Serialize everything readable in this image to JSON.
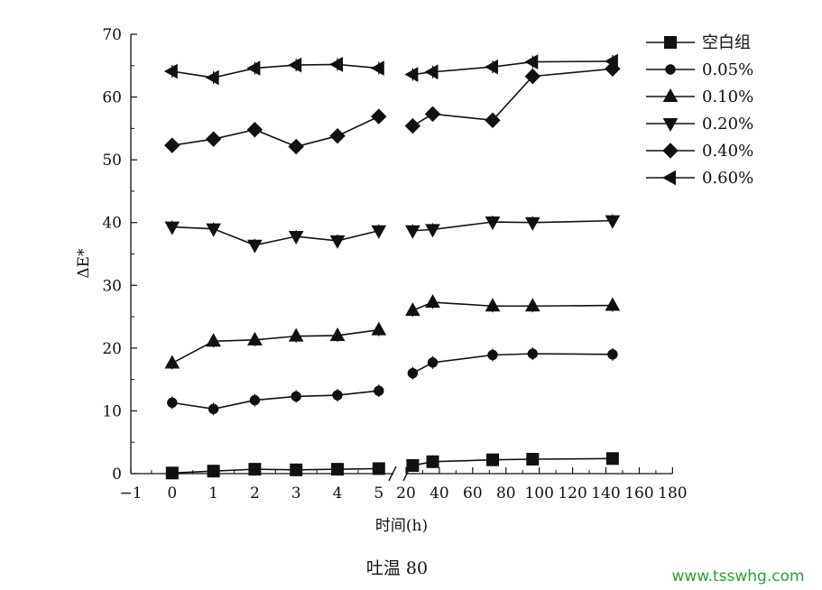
{
  "chart_data": {
    "type": "line",
    "caption": "吐温 80",
    "xlabel": "时间(h)",
    "ylabel": "ΔE*",
    "ylim": [
      0,
      70
    ],
    "y_ticks": [
      "0",
      "10",
      "20",
      "30",
      "40",
      "50",
      "60",
      "70"
    ],
    "x_tick_labels_left": [
      "−1",
      "0",
      "1",
      "2",
      "3",
      "4",
      "5"
    ],
    "x_tick_labels_right": [
      "20",
      "40",
      "60",
      "80",
      "100",
      "120",
      "140",
      "160",
      "180"
    ],
    "x_axis": "broken",
    "x_segment_left": [
      -1,
      5
    ],
    "x_segment_right": [
      20,
      180
    ],
    "legend_position": "top-right",
    "grid": false,
    "x": [
      0,
      1,
      2,
      3,
      4,
      5,
      24,
      36,
      72,
      96,
      144
    ],
    "series": [
      {
        "name": "空白组",
        "marker": "square",
        "values": [
          0.1,
          0.4,
          0.7,
          0.6,
          0.7,
          0.8,
          1.3,
          1.9,
          2.2,
          2.3,
          2.4
        ]
      },
      {
        "name": "0.05%",
        "marker": "circle",
        "values": [
          11.3,
          10.3,
          11.7,
          12.3,
          12.5,
          13.2,
          16.0,
          17.7,
          18.9,
          19.1,
          19.0
        ]
      },
      {
        "name": "0.10%",
        "marker": "triangle-up",
        "values": [
          17.6,
          21.1,
          21.3,
          21.9,
          22.0,
          22.9,
          26.0,
          27.3,
          26.7,
          26.7,
          26.8
        ]
      },
      {
        "name": "0.20%",
        "marker": "triangle-down",
        "values": [
          39.3,
          39.0,
          36.4,
          37.8,
          37.1,
          38.7,
          38.7,
          38.9,
          40.1,
          40.0,
          40.3
        ]
      },
      {
        "name": "0.40%",
        "marker": "diamond",
        "values": [
          52.3,
          53.3,
          54.8,
          52.1,
          53.8,
          56.9,
          55.4,
          57.3,
          56.3,
          63.3,
          64.5
        ]
      },
      {
        "name": "0.60%",
        "marker": "triangle-left",
        "values": [
          64.1,
          63.1,
          64.6,
          65.1,
          65.2,
          64.6,
          63.6,
          64.0,
          64.8,
          65.6,
          65.7
        ]
      }
    ]
  },
  "watermark": "www.tsswhg.com"
}
